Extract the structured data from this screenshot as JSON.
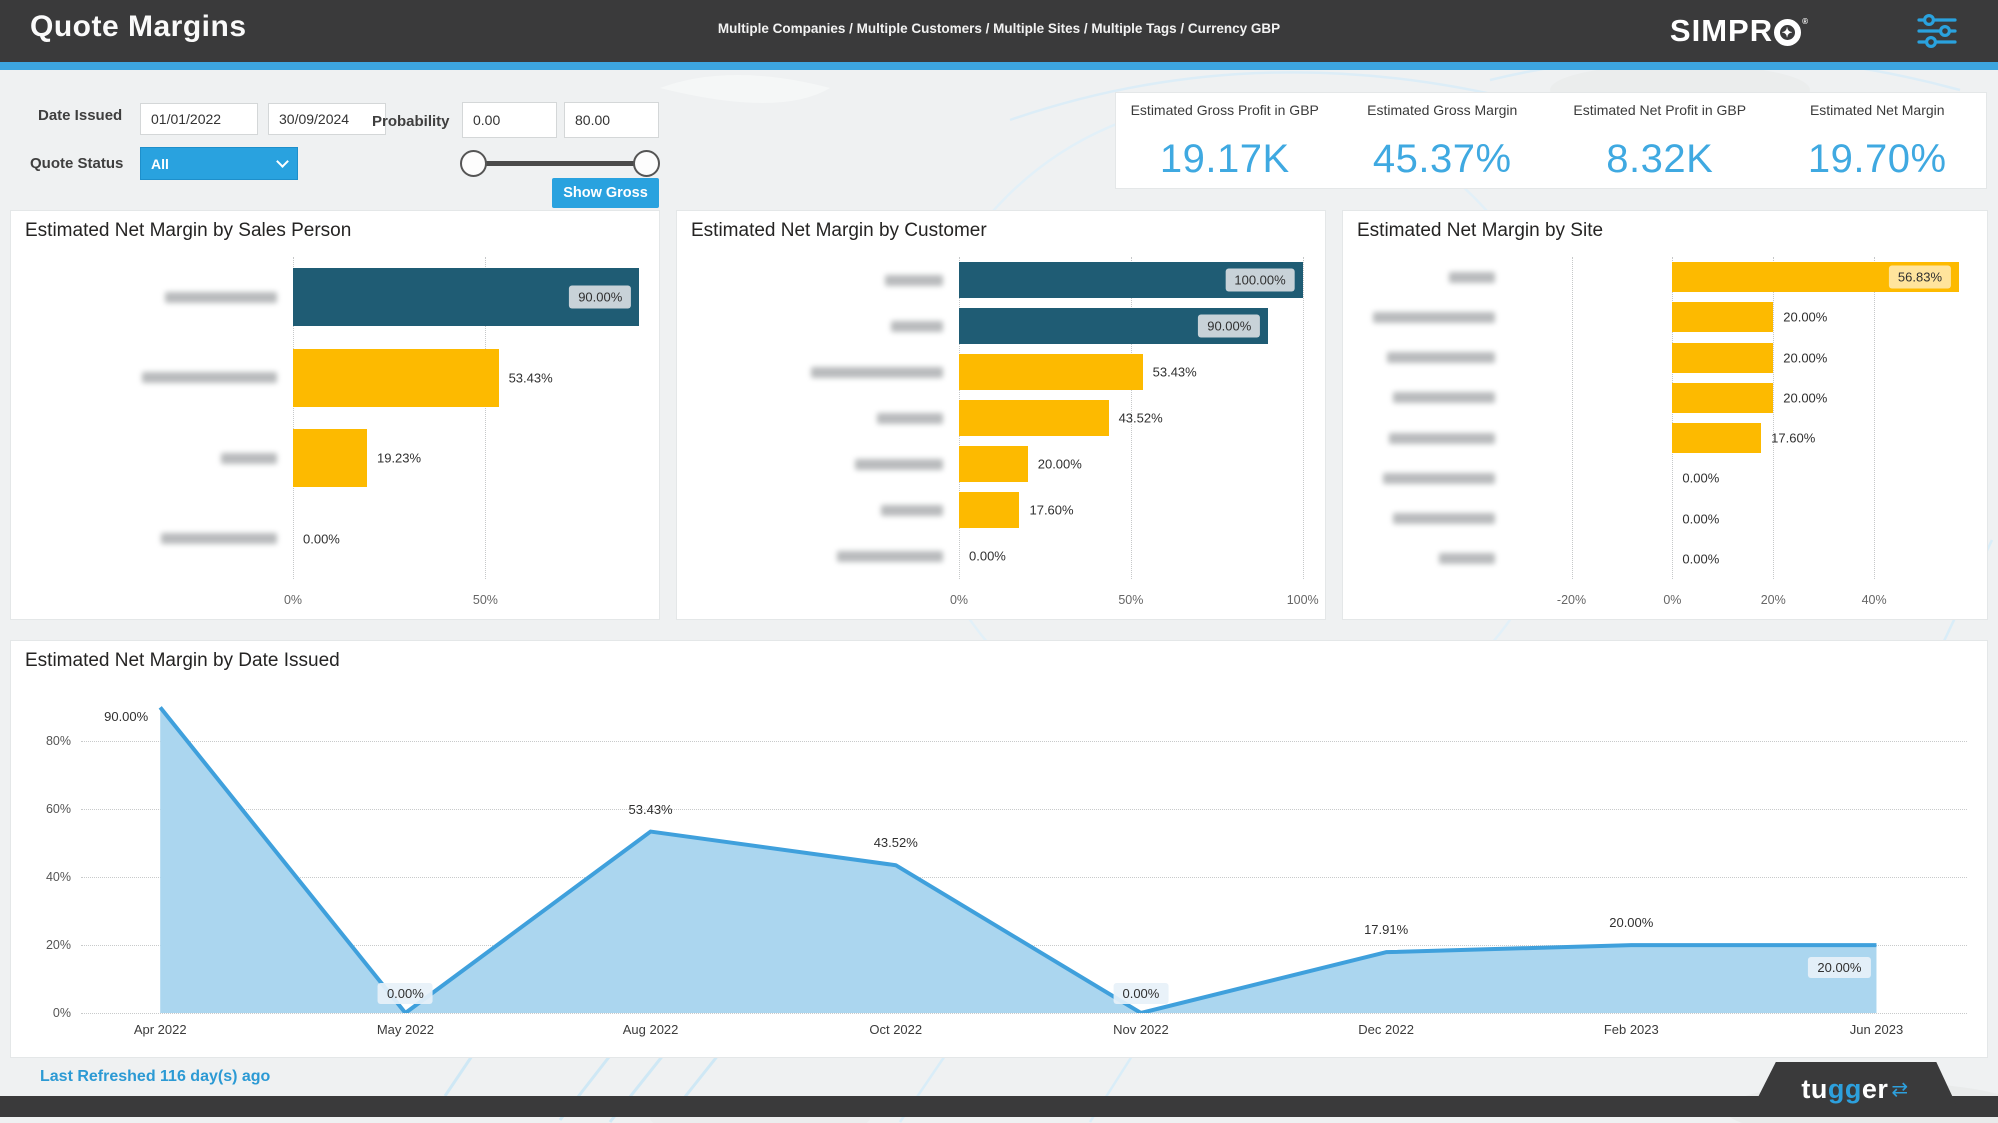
{
  "header": {
    "title": "Quote Margins",
    "filters_summary": "Multiple Companies / Multiple Customers / Multiple Sites / Multiple Tags / Currency GBP",
    "brand": "SIMPRO",
    "brand_prefix": "SIMPR"
  },
  "filters": {
    "date_issued_label": "Date Issued",
    "date_from": "01/01/2022",
    "date_to": "30/09/2024",
    "quote_status_label": "Quote Status",
    "quote_status_value": "All",
    "probability_label": "Probability",
    "probability_min": "0.00",
    "probability_max": "80.00",
    "show_gross_label": "Show Gross"
  },
  "kpis": [
    {
      "label": "Estimated Gross Profit in GBP",
      "value": "19.17K"
    },
    {
      "label": "Estimated Gross Margin",
      "value": "45.37%"
    },
    {
      "label": "Estimated Net Profit in GBP",
      "value": "8.32K"
    },
    {
      "label": "Estimated Net Margin",
      "value": "19.70%"
    }
  ],
  "chart_data": [
    {
      "type": "bar",
      "title": "Estimated Net Margin by Sales Person",
      "orientation": "horizontal",
      "categories_redacted": true,
      "axis": {
        "min": 0,
        "max": 92,
        "ticks": [
          {
            "v": 0,
            "t": "0%"
          },
          {
            "v": 50,
            "t": "50%"
          }
        ]
      },
      "rows": [
        {
          "value": 90,
          "label": "90.00%",
          "color": "teal",
          "inside": true,
          "blur": 112
        },
        {
          "value": 53.43,
          "label": "53.43%",
          "color": "yellow",
          "inside": false,
          "blur": 135
        },
        {
          "value": 19.23,
          "label": "19.23%",
          "color": "yellow",
          "inside": false,
          "blur": 56
        },
        {
          "value": 0,
          "label": "0.00%",
          "color": "yellow",
          "inside": false,
          "blur": 116
        }
      ]
    },
    {
      "type": "bar",
      "title": "Estimated Net Margin by Customer",
      "orientation": "horizontal",
      "categories_redacted": true,
      "axis": {
        "min": 0,
        "max": 103,
        "ticks": [
          {
            "v": 0,
            "t": "0%"
          },
          {
            "v": 50,
            "t": "50%"
          },
          {
            "v": 100,
            "t": "100%"
          }
        ]
      },
      "rows": [
        {
          "value": 100,
          "label": "100.00%",
          "color": "teal",
          "inside": true,
          "blur": 58
        },
        {
          "value": 90,
          "label": "90.00%",
          "color": "teal",
          "inside": true,
          "blur": 52
        },
        {
          "value": 53.43,
          "label": "53.43%",
          "color": "yellow",
          "inside": false,
          "blur": 132
        },
        {
          "value": 43.52,
          "label": "43.52%",
          "color": "yellow",
          "inside": false,
          "blur": 66
        },
        {
          "value": 20,
          "label": "20.00%",
          "color": "yellow",
          "inside": false,
          "blur": 88
        },
        {
          "value": 17.6,
          "label": "17.60%",
          "color": "yellow",
          "inside": false,
          "blur": 62
        },
        {
          "value": 0,
          "label": "0.00%",
          "color": "yellow",
          "inside": false,
          "blur": 106
        }
      ]
    },
    {
      "type": "bar",
      "title": "Estimated Net Margin by Site",
      "orientation": "horizontal",
      "categories_redacted": true,
      "axis": {
        "min": -32,
        "max": 60,
        "ticks": [
          {
            "v": -20,
            "t": "-20%"
          },
          {
            "v": 0,
            "t": "0%"
          },
          {
            "v": 20,
            "t": "20%"
          },
          {
            "v": 40,
            "t": "40%"
          }
        ]
      },
      "rows": [
        {
          "value": 56.83,
          "label": "56.83%",
          "color": "yellow",
          "inside": true,
          "blur": 46
        },
        {
          "value": 20,
          "label": "20.00%",
          "color": "yellow",
          "inside": false,
          "blur": 122
        },
        {
          "value": 20,
          "label": "20.00%",
          "color": "yellow",
          "inside": false,
          "blur": 108
        },
        {
          "value": 20,
          "label": "20.00%",
          "color": "yellow",
          "inside": false,
          "blur": 102
        },
        {
          "value": 17.6,
          "label": "17.60%",
          "color": "yellow",
          "inside": false,
          "blur": 106
        },
        {
          "value": 0,
          "label": "0.00%",
          "color": "yellow",
          "inside": false,
          "blur": 112
        },
        {
          "value": 0,
          "label": "0.00%",
          "color": "yellow",
          "inside": false,
          "blur": 102
        },
        {
          "value": 0,
          "label": "0.00%",
          "color": "yellow",
          "inside": false,
          "blur": 56
        }
      ]
    },
    {
      "type": "area",
      "title": "Estimated Net Margin by Date Issued",
      "x": [
        "Apr 2022",
        "May 2022",
        "Aug 2022",
        "Oct 2022",
        "Nov 2022",
        "Dec 2022",
        "Feb 2023",
        "Jun 2023"
      ],
      "values": [
        90,
        0,
        53.43,
        43.52,
        0,
        17.91,
        20,
        20
      ],
      "labels": [
        "90.00%",
        "0.00%",
        "53.43%",
        "43.52%",
        "0.00%",
        "17.91%",
        "20.00%",
        "20.00%"
      ],
      "label_pos": [
        "left",
        "above",
        "above",
        "above",
        "above",
        "above",
        "above",
        "below"
      ],
      "boxed": [
        false,
        true,
        false,
        false,
        true,
        false,
        false,
        true
      ],
      "y_ticks": [
        {
          "v": 0,
          "t": "0%"
        },
        {
          "v": 20,
          "t": "20%"
        },
        {
          "v": 40,
          "t": "40%"
        },
        {
          "v": 60,
          "t": "60%"
        },
        {
          "v": 80,
          "t": "80%"
        }
      ],
      "ylim": [
        0,
        96
      ],
      "grid": "horizontal-dotted",
      "line_color": "#3FA0DC",
      "fill_color": "#ABD6EF"
    }
  ],
  "colors": {
    "accent_blue": "#29A2DF",
    "kpi_blue": "#3FA9E1",
    "bar_teal": "#1F5C74",
    "bar_yellow": "#FDBA00",
    "header_dark": "#3A3A3B"
  },
  "footer": {
    "last_refreshed": "Last Refreshed 116 day(s) ago",
    "brand_t": "tu",
    "brand_g": "gg",
    "brand_e": "er",
    "brand_arrows": "⇄"
  }
}
